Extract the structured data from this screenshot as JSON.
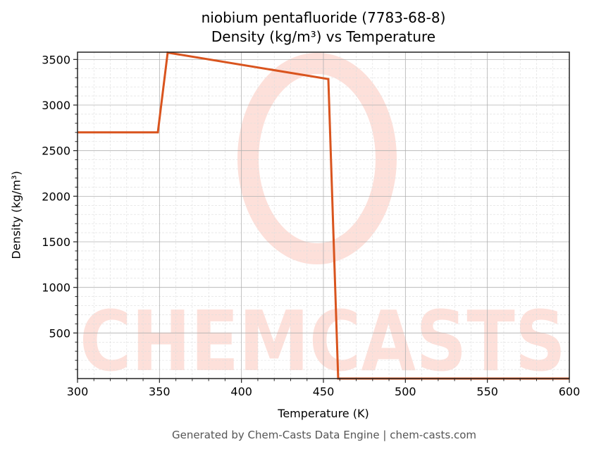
{
  "title_line1": "niobium pentafluoride (7783-68-8)",
  "title_line2": "Density (kg/m³) vs Temperature",
  "xlabel": "Temperature (K)",
  "ylabel": "Density (kg/m³)",
  "footer": "Generated by Chem-Casts Data Engine | chem-casts.com",
  "watermark": "CHEMCASTS",
  "colors": {
    "line": "#d9541e",
    "watermark": "#fde0da",
    "grid_major": "#b0b0b0",
    "grid_minor": "#dddddd"
  },
  "chart_data": {
    "type": "line",
    "title": "niobium pentafluoride (7783-68-8) Density (kg/m³) vs Temperature",
    "xlabel": "Temperature (K)",
    "ylabel": "Density (kg/m³)",
    "xlim": [
      300,
      600
    ],
    "ylim": [
      0,
      3580
    ],
    "xticks": [
      300,
      350,
      400,
      450,
      500,
      550,
      600
    ],
    "yticks": [
      500,
      1000,
      1500,
      2000,
      2500,
      3000,
      3500
    ],
    "grid": true,
    "legend": null,
    "series": [
      {
        "name": "Density",
        "x": [
          300,
          349,
          355,
          453,
          459,
          600
        ],
        "y": [
          2700,
          2700,
          3575,
          3285,
          0,
          0
        ]
      }
    ]
  }
}
